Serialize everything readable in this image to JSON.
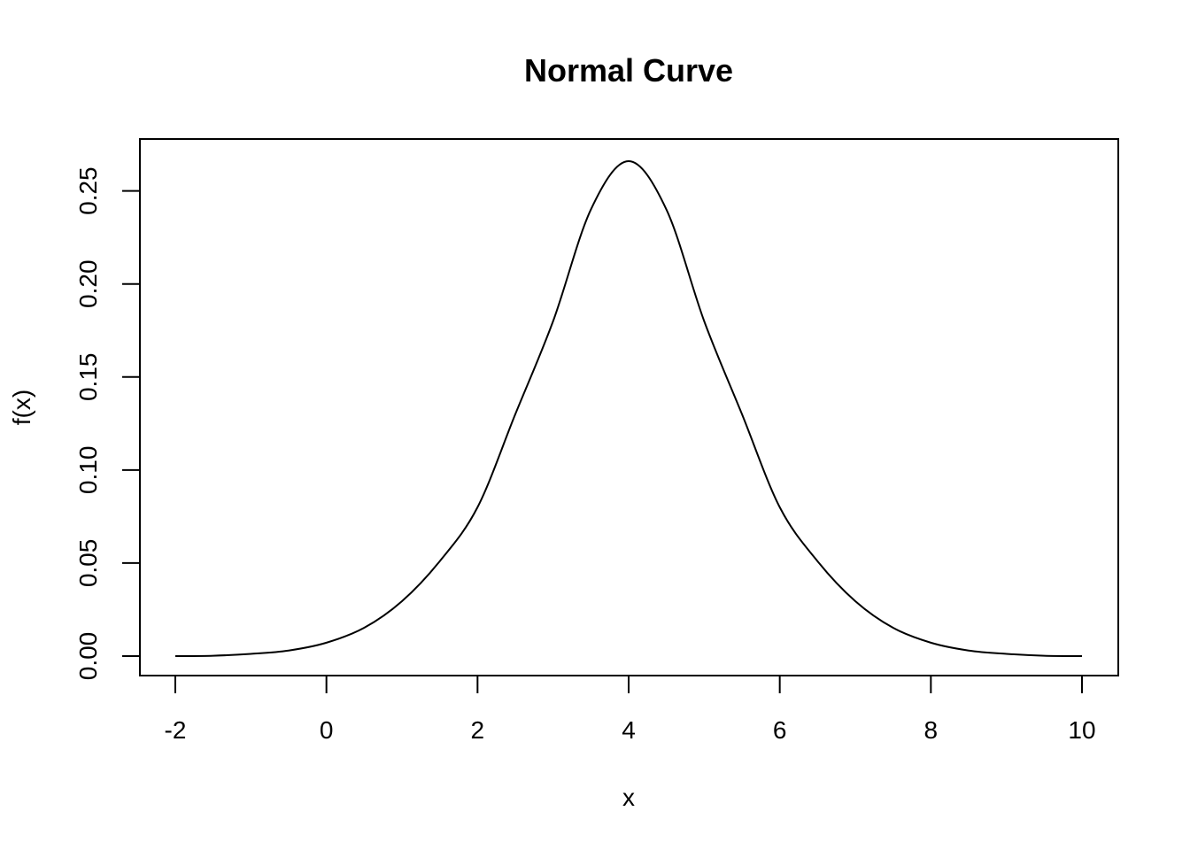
{
  "chart_data": {
    "type": "line",
    "title": "Normal Curve",
    "xlabel": "x",
    "ylabel": "f(x)",
    "xlim": [
      -2,
      10
    ],
    "ylim": [
      0,
      0.266
    ],
    "grid": false,
    "x_ticks": [
      -2,
      0,
      2,
      4,
      6,
      8,
      10
    ],
    "x_tick_labels": [
      "-2",
      "0",
      "2",
      "4",
      "6",
      "8",
      "10"
    ],
    "y_ticks": [
      0,
      0.05,
      0.1,
      0.15,
      0.2,
      0.25
    ],
    "y_tick_labels": [
      "0.00",
      "0.05",
      "0.10",
      "0.15",
      "0.20",
      "0.25"
    ],
    "series": [
      {
        "x": [
          -2,
          -1.5,
          -1,
          -0.5,
          0,
          0.5,
          1,
          1.5,
          2,
          2.5,
          3,
          3.5,
          4,
          4.5,
          5,
          5.5,
          6,
          6.5,
          7,
          7.5,
          8,
          8.5,
          9,
          9.5,
          10
        ],
        "y": [
          0.0,
          0.0002,
          0.0012,
          0.003,
          0.0072,
          0.0152,
          0.0295,
          0.051,
          0.08,
          0.13,
          0.18,
          0.24,
          0.266,
          0.24,
          0.18,
          0.13,
          0.08,
          0.051,
          0.0295,
          0.0152,
          0.0072,
          0.003,
          0.0012,
          0.0002,
          0.0
        ],
        "color": "#000000"
      }
    ]
  }
}
